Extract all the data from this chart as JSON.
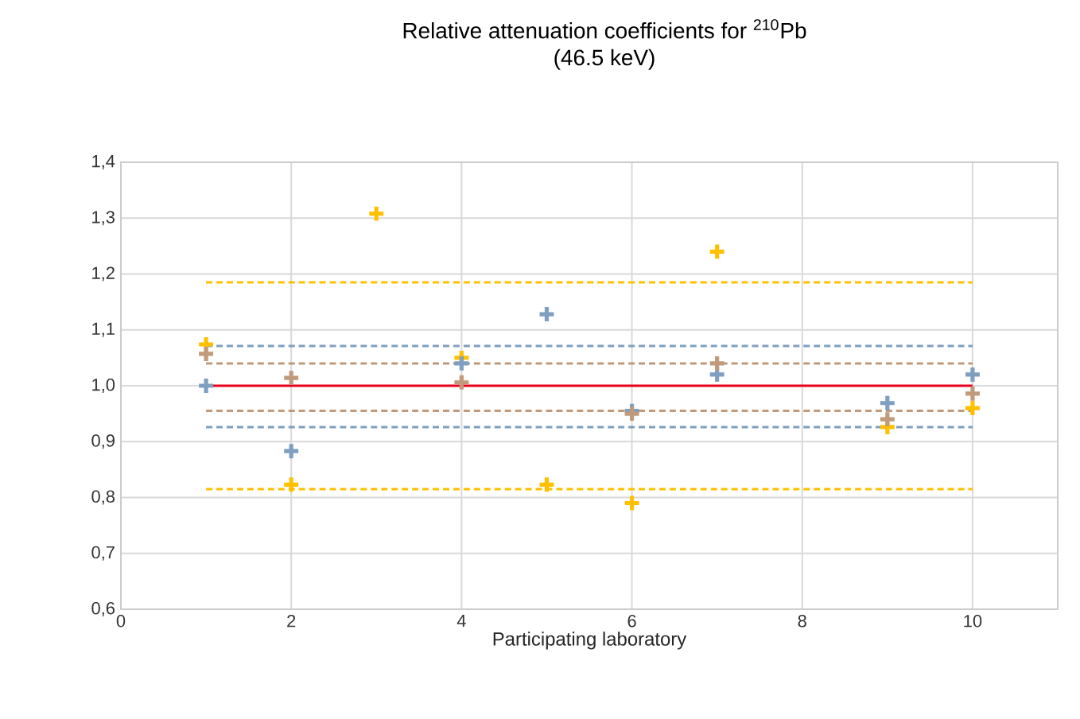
{
  "chart_data": {
    "type": "scatter",
    "title": "Relative attenuation coefficients for $^{210}$Pb",
    "subtitle": "(46.5 keV)",
    "xlabel": "Participating laboratory",
    "xlim": [
      0,
      11
    ],
    "xticks": [
      0,
      2,
      4,
      6,
      8,
      10
    ],
    "ylim": [
      0.6,
      1.4
    ],
    "yticks": [
      {
        "value": 0.6,
        "label": "0,6"
      },
      {
        "value": 0.7,
        "label": "0,7"
      },
      {
        "value": 0.8,
        "label": "0,8"
      },
      {
        "value": 0.9,
        "label": "0,9"
      },
      {
        "value": 1.0,
        "label": "1,0"
      },
      {
        "value": 1.1,
        "label": "1,1"
      },
      {
        "value": 1.2,
        "label": "1,2"
      },
      {
        "value": 1.3,
        "label": "1,3"
      },
      {
        "value": 1.4,
        "label": "1,4"
      }
    ],
    "grid": true,
    "marker": "cross",
    "series": [
      {
        "type": "line",
        "color": "#ffc000",
        "line_style": "dashed",
        "marker": "none",
        "x": [
          1,
          10
        ],
        "values": [
          1.185,
          1.185
        ]
      },
      {
        "type": "line",
        "color": "#ffc000",
        "line_style": "dashed",
        "marker": "none",
        "x": [
          1,
          10
        ],
        "values": [
          0.815,
          0.815
        ]
      },
      {
        "type": "line",
        "color": "#7f9fc0",
        "line_style": "dashed",
        "marker": "none",
        "x": [
          1,
          10
        ],
        "values": [
          1.071,
          1.071
        ]
      },
      {
        "type": "line",
        "color": "#7f9fc0",
        "line_style": "dashed",
        "marker": "none",
        "x": [
          1,
          10
        ],
        "values": [
          0.926,
          0.926
        ]
      },
      {
        "type": "line",
        "color": "#c09a7a",
        "line_style": "dashed",
        "marker": "none",
        "x": [
          1,
          10
        ],
        "values": [
          1.04,
          1.04
        ]
      },
      {
        "type": "line",
        "color": "#c09a7a",
        "line_style": "dashed",
        "marker": "none",
        "x": [
          1,
          10
        ],
        "values": [
          0.955,
          0.955
        ]
      },
      {
        "type": "line",
        "color": "#e8001c",
        "line_style": "solid",
        "marker": "none",
        "x": [
          1,
          10
        ],
        "values": [
          1.0,
          1.0
        ]
      },
      {
        "color": "#ffc000",
        "x": [
          1,
          2,
          3,
          4,
          5,
          6,
          7,
          9,
          10
        ],
        "values": [
          1.074,
          0.823,
          1.308,
          1.05,
          0.823,
          0.79,
          1.24,
          0.926,
          0.96
        ]
      },
      {
        "color": "#7f9fc0",
        "x": [
          1,
          2,
          4,
          5,
          6,
          7,
          9,
          10
        ],
        "values": [
          1.0,
          0.883,
          1.04,
          1.128,
          0.955,
          1.02,
          0.969,
          1.02
        ]
      },
      {
        "color": "#c09a7a",
        "x": [
          1,
          2,
          4,
          6,
          7,
          9,
          10
        ],
        "values": [
          1.057,
          1.014,
          1.006,
          0.95,
          1.04,
          0.94,
          0.986
        ]
      }
    ]
  }
}
